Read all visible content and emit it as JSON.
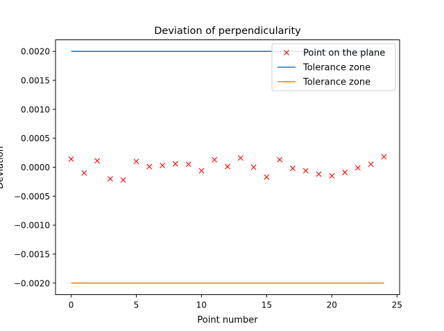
{
  "chart_data": {
    "type": "scatter",
    "title": "Deviation of perpendicularity",
    "xlabel": "Point number",
    "ylabel": "Deviation",
    "xlim": [
      -1.2,
      25.2
    ],
    "ylim": [
      -0.0022,
      0.0022
    ],
    "x_ticks": [
      0,
      5,
      10,
      15,
      20,
      25
    ],
    "x_tick_labels": [
      "0",
      "5",
      "10",
      "15",
      "20",
      "25"
    ],
    "y_ticks": [
      0.002,
      0.0015,
      0.001,
      0.0005,
      0.0,
      -0.0005,
      -0.001,
      -0.0015,
      -0.002
    ],
    "y_tick_labels": [
      "0.0020",
      "0.0015",
      "0.0010",
      "0.0005",
      "0.0000",
      "−0.0005",
      "−0.0010",
      "−0.0015",
      "−0.0020"
    ],
    "grid": false,
    "legend_position": "top-right",
    "series": [
      {
        "name": "Point on the plane",
        "marker": "x",
        "color": "#ff0000",
        "x": [
          0,
          1,
          2,
          3,
          4,
          5,
          6,
          7,
          8,
          9,
          10,
          11,
          12,
          13,
          14,
          15,
          16,
          17,
          18,
          19,
          20,
          21,
          22,
          23,
          24
        ],
        "y": [
          0.00014,
          -0.0001,
          0.00011,
          -0.0002,
          -0.00022,
          0.0001,
          1e-05,
          3e-05,
          6e-05,
          5e-05,
          -6e-05,
          0.00013,
          1e-05,
          0.00016,
          0.0,
          -0.00017,
          0.00013,
          -2e-05,
          -6e-05,
          -0.00012,
          -0.00015,
          -9e-05,
          -1e-05,
          5e-05,
          0.00018
        ]
      },
      {
        "name": "Tolerance zone",
        "marker": "line",
        "color": "#1f77b4",
        "x": [
          0,
          24
        ],
        "y": [
          0.002,
          0.002
        ]
      },
      {
        "name": "Tolerance zone",
        "marker": "line",
        "color": "#ff7f0e",
        "x": [
          0,
          24
        ],
        "y": [
          -0.002,
          -0.002
        ]
      }
    ]
  }
}
